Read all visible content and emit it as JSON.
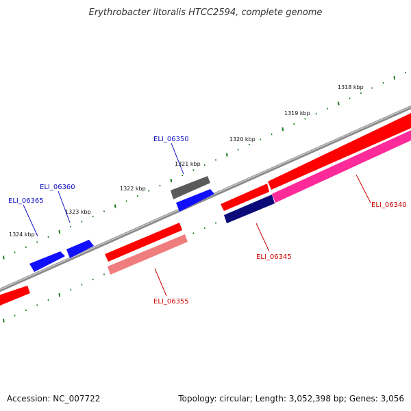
{
  "title": "Erythrobacter litoralis HTCC2594, complete genome",
  "accession": "Accession: NC_007722",
  "topology": "Topology: circular; Length: 3,052,398 bp; Genes: 3,056",
  "colors": {
    "backbone": "#8a8a8a",
    "tick": "#1a7a1a",
    "label_blue": "#1010c0",
    "label_red": "#cc0000",
    "red": "#ff0000",
    "pink": "#ff2a9a",
    "salmon": "#f07d7d",
    "blue": "#1010ff",
    "navy": "#0a0a78",
    "gray": "#5a5a5a"
  },
  "scale": {
    "unit": "kbp",
    "labels": [
      {
        "kbp": 1318,
        "text": "1318 kbp"
      },
      {
        "kbp": 1319,
        "text": "1319 kbp"
      },
      {
        "kbp": 1320,
        "text": "1320 kbp"
      },
      {
        "kbp": 1321,
        "text": "1321 kbp"
      },
      {
        "kbp": 1322,
        "text": "1322 kbp"
      },
      {
        "kbp": 1323,
        "text": "1323 kbp"
      },
      {
        "kbp": 1324,
        "text": "1324 kbp"
      }
    ]
  },
  "genes": [
    {
      "id": "ELI_06340",
      "label": "ELI_06340",
      "label_color": "label_red"
    },
    {
      "id": "ELI_06345",
      "label": "ELI_06345",
      "label_color": "label_red"
    },
    {
      "id": "ELI_06350",
      "label": "ELI_06350",
      "label_color": "label_blue"
    },
    {
      "id": "ELI_06355",
      "label": "ELI_06355",
      "label_color": "label_red"
    },
    {
      "id": "ELI_06360",
      "label": "ELI_06360",
      "label_color": "label_blue"
    },
    {
      "id": "ELI_06365",
      "label": "ELI_06365",
      "label_color": "label_blue"
    }
  ]
}
